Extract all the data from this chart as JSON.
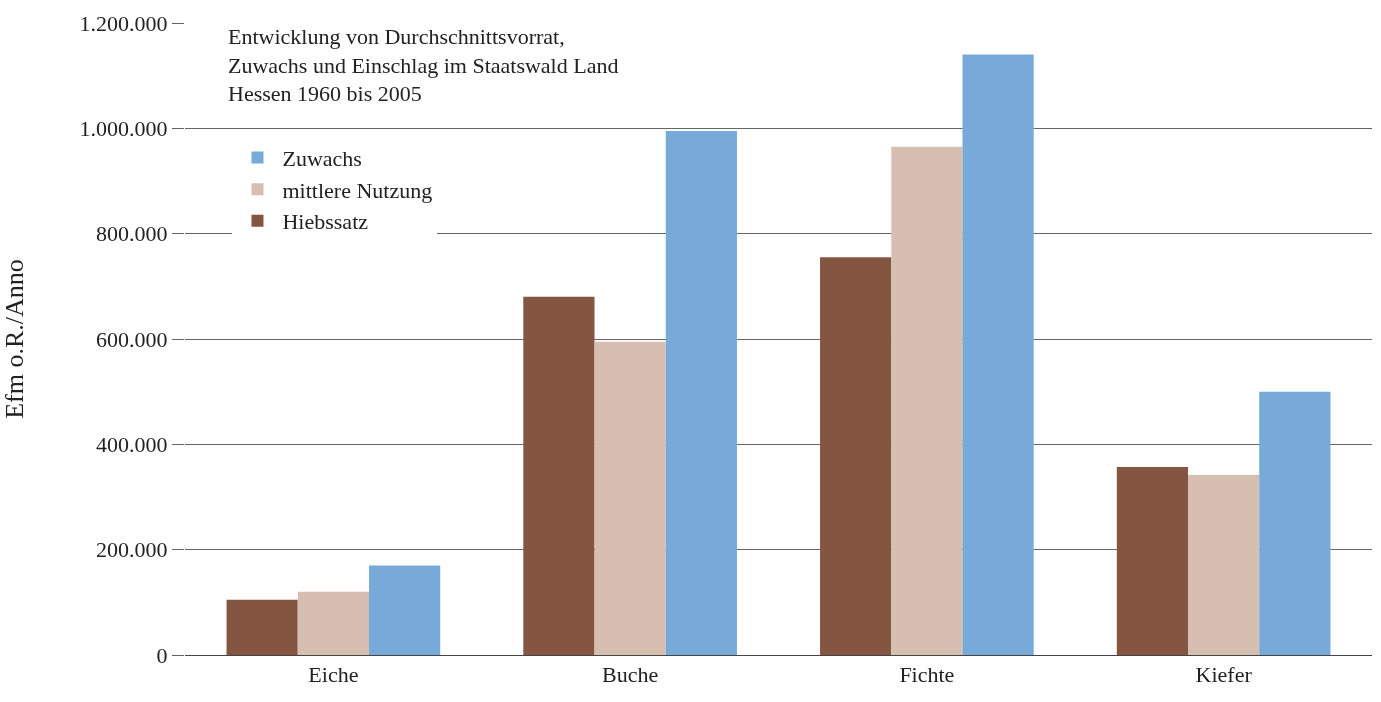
{
  "chart_data": {
    "type": "bar",
    "title": "Entwicklung von Durchschnittsvorrat,\nZuwachs und Einschlag im Staatswald Land\nHessen 1960 bis 2005",
    "ylabel": "Efm o.R./Anno",
    "categories": [
      "Eiche",
      "Buche",
      "Fichte",
      "Kiefer"
    ],
    "series": [
      {
        "name": "Hiebssatz",
        "color": "#845641",
        "values": [
          105000,
          680000,
          755000,
          357000
        ]
      },
      {
        "name": "mittlere Nutzung",
        "color": "#d6bfb0",
        "values": [
          120000,
          595000,
          965000,
          342000
        ]
      },
      {
        "name": "Zuwachs",
        "color": "#77aad8",
        "values": [
          170000,
          995000,
          1140000,
          500000
        ]
      }
    ],
    "ylim": [
      0,
      1200000
    ],
    "yticks": [
      {
        "value": 0,
        "label": "0"
      },
      {
        "value": 200000,
        "label": "200.000"
      },
      {
        "value": 400000,
        "label": "400.000"
      },
      {
        "value": 600000,
        "label": "600.000"
      },
      {
        "value": 800000,
        "label": "800.000"
      },
      {
        "value": 1000000,
        "label": "1.000.000"
      },
      {
        "value": 1200000,
        "label": "1.200.000"
      }
    ],
    "grid": "y",
    "legend": "top left"
  }
}
